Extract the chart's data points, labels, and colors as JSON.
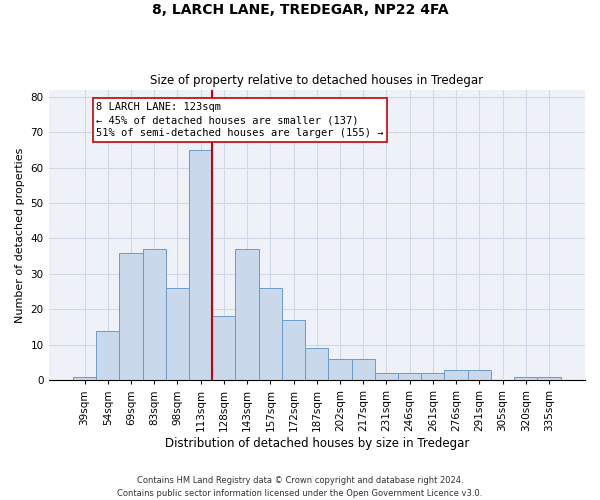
{
  "title1": "8, LARCH LANE, TREDEGAR, NP22 4FA",
  "title2": "Size of property relative to detached houses in Tredegar",
  "xlabel": "Distribution of detached houses by size in Tredegar",
  "ylabel": "Number of detached properties",
  "footnote": "Contains HM Land Registry data © Crown copyright and database right 2024.\nContains public sector information licensed under the Open Government Licence v3.0.",
  "bin_labels": [
    "39sqm",
    "54sqm",
    "69sqm",
    "83sqm",
    "98sqm",
    "113sqm",
    "128sqm",
    "143sqm",
    "157sqm",
    "172sqm",
    "187sqm",
    "202sqm",
    "217sqm",
    "231sqm",
    "246sqm",
    "261sqm",
    "276sqm",
    "291sqm",
    "305sqm",
    "320sqm",
    "335sqm"
  ],
  "bar_values": [
    1,
    14,
    36,
    37,
    26,
    65,
    18,
    37,
    26,
    17,
    9,
    6,
    6,
    2,
    2,
    2,
    3,
    3,
    0,
    1,
    1
  ],
  "bar_color": "#c9d9eb",
  "bar_edge_color": "#6a9cc9",
  "vline_x": 5.5,
  "vline_color": "#cc0000",
  "annotation_line1": "8 LARCH LANE: 123sqm",
  "annotation_line2": "← 45% of detached houses are smaller (137)",
  "annotation_line3": "51% of semi-detached houses are larger (155) →",
  "ylim": [
    0,
    82
  ],
  "yticks": [
    0,
    10,
    20,
    30,
    40,
    50,
    60,
    70,
    80
  ],
  "grid_color": "#d0d8e8",
  "background_color": "#eef2f8",
  "title1_fontsize": 10,
  "title2_fontsize": 8.5,
  "xlabel_fontsize": 8.5,
  "ylabel_fontsize": 8,
  "tick_fontsize": 7.5,
  "footnote_fontsize": 6,
  "ann_fontsize": 7.5
}
